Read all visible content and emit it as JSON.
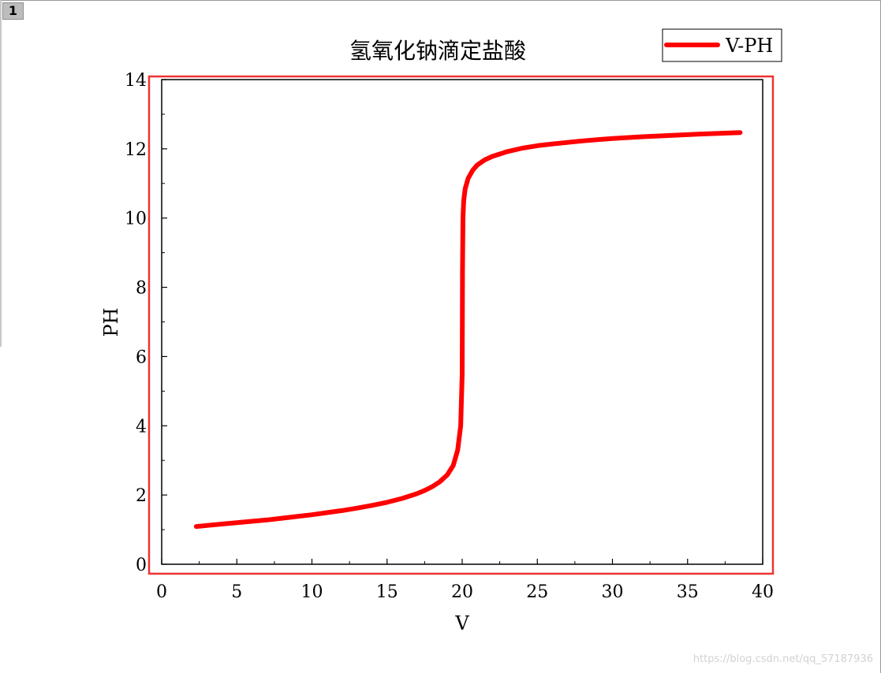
{
  "tab": {
    "label": "1"
  },
  "watermark": "https://blog.csdn.net/qq_57187936",
  "chart_data": {
    "type": "line",
    "title": "氢氧化钠滴定盐酸",
    "xlabel": "V",
    "ylabel": "PH",
    "xlim": [
      0,
      40
    ],
    "ylim": [
      0,
      14
    ],
    "xticks": [
      0,
      5,
      10,
      15,
      20,
      25,
      30,
      35,
      40
    ],
    "yticks": [
      0,
      2,
      4,
      6,
      8,
      10,
      12,
      14
    ],
    "legend": {
      "position": "top-right",
      "entries": [
        "V-PH"
      ]
    },
    "grid": false,
    "series": [
      {
        "name": "V-PH",
        "color": "#ff0000",
        "x": [
          2.3,
          3,
          4,
          5,
          6,
          7,
          8,
          9,
          10,
          11,
          12,
          13,
          14,
          15,
          16,
          17,
          17.5,
          18,
          18.5,
          19,
          19.4,
          19.7,
          19.9,
          20.0,
          20.02,
          20.05,
          20.1,
          20.2,
          20.4,
          20.7,
          21,
          21.5,
          22,
          23,
          24,
          25,
          26,
          28,
          30,
          32,
          34,
          36,
          38.5
        ],
        "y": [
          1.09,
          1.12,
          1.16,
          1.2,
          1.24,
          1.28,
          1.33,
          1.38,
          1.43,
          1.49,
          1.55,
          1.62,
          1.7,
          1.79,
          1.9,
          2.04,
          2.13,
          2.24,
          2.38,
          2.58,
          2.85,
          3.3,
          4.0,
          5.5,
          8.5,
          10.0,
          10.5,
          10.85,
          11.15,
          11.38,
          11.53,
          11.68,
          11.78,
          11.92,
          12.02,
          12.09,
          12.14,
          12.23,
          12.3,
          12.35,
          12.39,
          12.43,
          12.47
        ]
      }
    ]
  }
}
